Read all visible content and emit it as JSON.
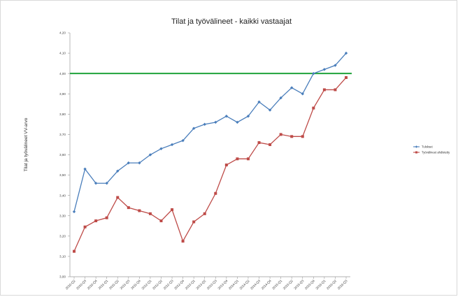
{
  "chart_data": {
    "type": "line",
    "title": "Tilat ja työvälineet - kaikki vastaajat",
    "ylabel": "Tilat ja työvälineet  VV-arvo",
    "xlabel": "",
    "ylim": [
      3.0,
      4.2
    ],
    "yticks": [
      "4,20",
      "4,10",
      "4,00",
      "3,90",
      "3,80",
      "3,70",
      "3,60",
      "3,50",
      "3,40",
      "3,30",
      "3,20",
      "3,10",
      "3,00"
    ],
    "categories": [
      "2010-Q2",
      "2010-Q3",
      "2010-Q4",
      "2011-Q1",
      "2011-Q2",
      "2011-Q3",
      "2011-Q4",
      "2012-Q1",
      "2012-Q2",
      "2012-Q3",
      "2012-Q4",
      "2013-Q1",
      "2013-Q2",
      "2013-Q3",
      "2013-Q4",
      "2014-Q1",
      "2014-Q2",
      "2014-Q3",
      "2014-Q4",
      "2015-Q1",
      "2015-Q2",
      "2015-Q3",
      "2015-Q4",
      "2016-Q1",
      "2016-Q2",
      "2016-Q3"
    ],
    "grid": false,
    "legend_position": "right",
    "reference_line": {
      "value": 4.0,
      "color": "#1fa33a"
    },
    "series": [
      {
        "name": "Tulokset",
        "color": "#4a7ebb",
        "marker": "diamond",
        "values": [
          3.32,
          3.53,
          3.46,
          3.46,
          3.52,
          3.56,
          3.56,
          3.6,
          3.63,
          3.65,
          3.67,
          3.73,
          3.75,
          3.76,
          3.79,
          3.76,
          3.79,
          3.86,
          3.82,
          3.88,
          3.93,
          3.9,
          4.0,
          4.02,
          4.04,
          4.1
        ]
      },
      {
        "name": "Työvälineet ahdistetty",
        "color": "#be4b48",
        "marker": "square",
        "values": [
          3.125,
          3.245,
          3.275,
          3.29,
          3.39,
          3.34,
          3.325,
          3.31,
          3.275,
          3.33,
          3.175,
          3.27,
          3.31,
          3.41,
          3.55,
          3.58,
          3.58,
          3.66,
          3.65,
          3.7,
          3.69,
          3.69,
          3.83,
          3.92,
          3.92,
          3.98
        ]
      }
    ]
  }
}
